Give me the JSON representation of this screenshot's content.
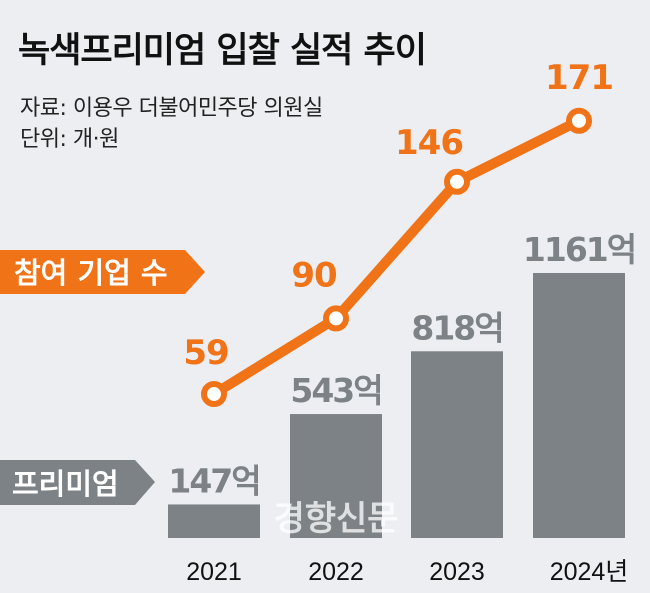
{
  "title": "녹색프리미엄 입찰 실적 추이",
  "source": "자료: 이용우 더불어민주당 의원실",
  "unit": "단위: 개·원",
  "watermark": "경향신문",
  "colors": {
    "line": "#f07318",
    "bar": "#7c8286",
    "background": "#eceef2"
  },
  "chart_data": {
    "type": "bar+line",
    "categories": [
      "2021",
      "2022",
      "2023",
      "2024년"
    ],
    "series": [
      {
        "name": "참여 기업 수",
        "type": "line",
        "values": [
          59,
          90,
          146,
          171
        ],
        "labels": [
          "59",
          "90",
          "146",
          "171"
        ]
      },
      {
        "name": "프리미엄",
        "type": "bar",
        "values": [
          147,
          543,
          818,
          1161
        ],
        "labels": [
          "147억",
          "543억",
          "818억",
          "1161억"
        ]
      }
    ],
    "grid": false
  }
}
